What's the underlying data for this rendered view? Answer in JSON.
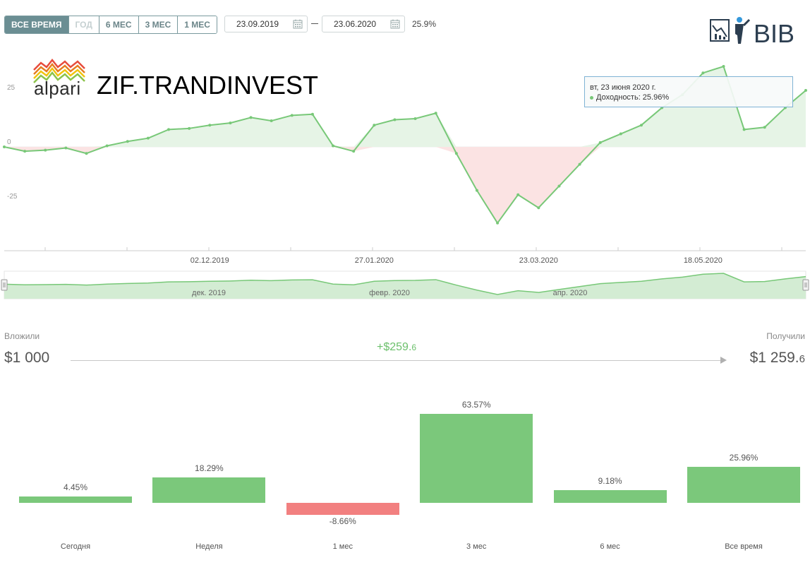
{
  "toolbar": {
    "periods": [
      {
        "label": "ВСЕ ВРЕМЯ",
        "state": "active"
      },
      {
        "label": "ГОД",
        "state": "disabled"
      },
      {
        "label": "6 МЕС",
        "state": "normal"
      },
      {
        "label": "3 МЕС",
        "state": "normal"
      },
      {
        "label": "1 МЕС",
        "state": "normal"
      }
    ],
    "date_from": "23.09.2019",
    "date_to": "23.06.2020",
    "period_return": "25.9%"
  },
  "branding": {
    "site_logo_text": "BIB",
    "broker_logo_text": "alpari",
    "title": "ZIF.TRANDINVEST"
  },
  "chart_data": {
    "type": "area",
    "ylabels": [
      "25",
      "0",
      "-25"
    ],
    "xlabels": [
      "02.12.2019",
      "27.01.2020",
      "23.03.2020",
      "18.05.2020"
    ],
    "y_range": [
      -50,
      45
    ],
    "x": [
      "23.09.2019",
      "30.09.2019",
      "07.10.2019",
      "14.10.2019",
      "21.10.2019",
      "28.10.2019",
      "04.11.2019",
      "11.11.2019",
      "18.11.2019",
      "25.11.2019",
      "02.12.2019",
      "09.12.2019",
      "16.12.2019",
      "23.12.2019",
      "30.12.2019",
      "06.01.2020",
      "13.01.2020",
      "20.01.2020",
      "27.01.2020",
      "03.02.2020",
      "10.02.2020",
      "17.02.2020",
      "24.02.2020",
      "02.03.2020",
      "09.03.2020",
      "16.03.2020",
      "23.03.2020",
      "30.03.2020",
      "06.04.2020",
      "13.04.2020",
      "20.04.2020",
      "27.04.2020",
      "04.05.2020",
      "11.05.2020",
      "18.05.2020",
      "25.05.2020",
      "01.06.2020",
      "08.06.2020",
      "15.06.2020",
      "23.06.2020"
    ],
    "values": [
      0.0,
      -2.0,
      -1.5,
      -0.5,
      -3.0,
      0.5,
      2.5,
      4.0,
      8.0,
      8.5,
      10.0,
      11.0,
      13.5,
      12.0,
      14.5,
      15.0,
      0.5,
      -2.0,
      10.0,
      12.5,
      13.0,
      15.5,
      -3.0,
      -20.0,
      -35.0,
      -22.0,
      -28.0,
      -18.0,
      -8.0,
      2.0,
      6.0,
      10.0,
      18.0,
      24.0,
      34.0,
      37.0,
      8.0,
      9.0,
      18.0,
      25.96
    ],
    "colors": {
      "line": "#78c878",
      "positive_fill": "#e6f4e6",
      "negative_fill": "#fbe3e3"
    },
    "navigator_labels": [
      "дек. 2019",
      "февр. 2020",
      "апр. 2020"
    ]
  },
  "tooltip": {
    "date": "вт, 23 июня 2020 г.",
    "value_label": "Доходность: 25.96%"
  },
  "investment": {
    "invested_label": "Вложили",
    "invested_amount": "$1 000",
    "received_label": "Получили",
    "received_amount_main": "$1 259.",
    "received_amount_frac": "6",
    "gain_main": "+$259.",
    "gain_frac": "6"
  },
  "returns": {
    "items": [
      {
        "label": "Сегодня",
        "value": 4.45,
        "value_text": "4.45%"
      },
      {
        "label": "Неделя",
        "value": 18.29,
        "value_text": "18.29%"
      },
      {
        "label": "1 мес",
        "value": -8.66,
        "value_text": "-8.66%"
      },
      {
        "label": "3 мес",
        "value": 63.57,
        "value_text": "63.57%"
      },
      {
        "label": "6 мес",
        "value": 9.18,
        "value_text": "9.18%"
      },
      {
        "label": "Все время",
        "value": 25.96,
        "value_text": "25.96%"
      }
    ],
    "colors": {
      "positive": "#7bc87b",
      "negative": "#f28080"
    }
  }
}
